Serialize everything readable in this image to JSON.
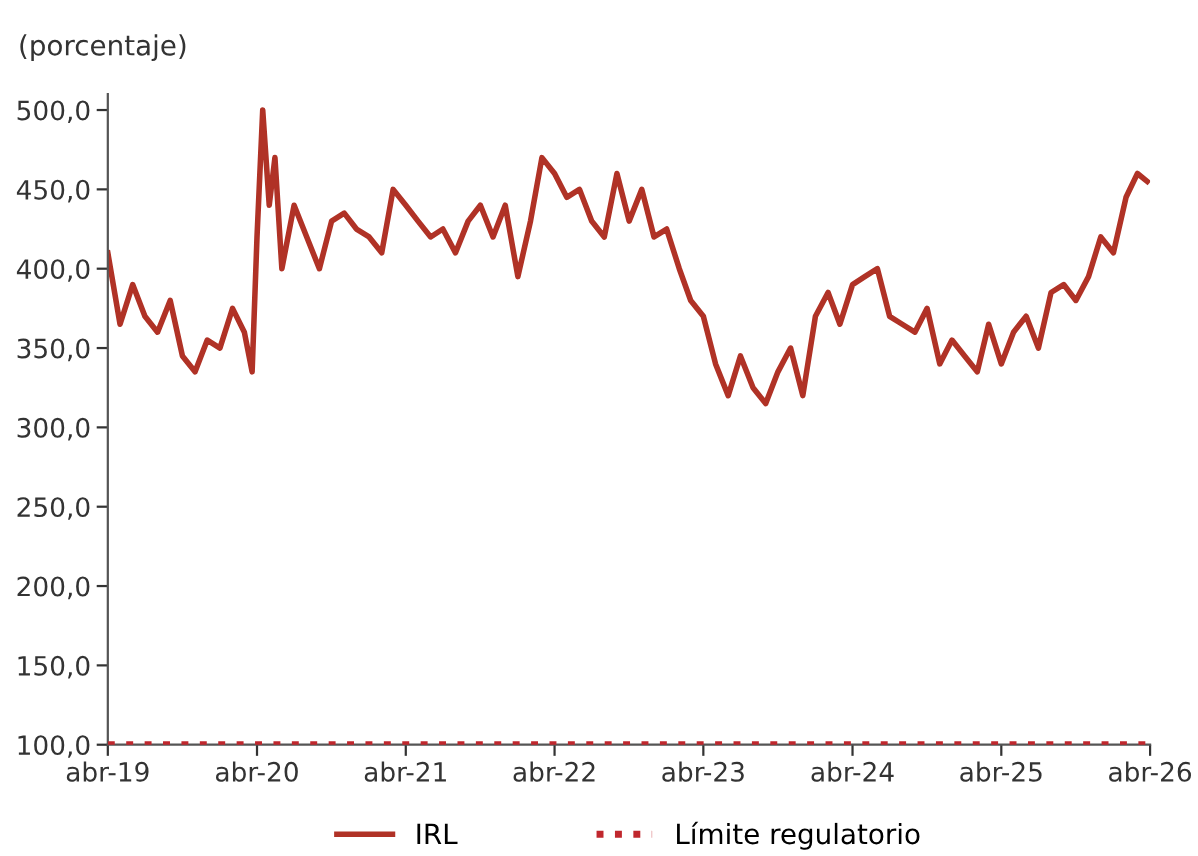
{
  "chart_data": {
    "type": "line",
    "ylabel": "(porcentaje)",
    "xlim": [
      "2019-04-01",
      "2026-04-01"
    ],
    "xticks": [
      {
        "value": "2019-04-01",
        "label": "abr-19"
      },
      {
        "value": "2020-04-01",
        "label": "abr-20"
      },
      {
        "value": "2021-04-01",
        "label": "abr-21"
      },
      {
        "value": "2022-04-01",
        "label": "abr-22"
      },
      {
        "value": "2023-04-01",
        "label": "abr-23"
      },
      {
        "value": "2024-04-01",
        "label": "abr-24"
      },
      {
        "value": "2025-04-01",
        "label": "abr-25"
      },
      {
        "value": "2026-04-01",
        "label": "abr-26"
      }
    ],
    "ylim": [
      100,
      510
    ],
    "yticks": [
      {
        "value": 100,
        "label": "100,0"
      },
      {
        "value": 150,
        "label": "150,0"
      },
      {
        "value": 200,
        "label": "200,0"
      },
      {
        "value": 250,
        "label": "250,0"
      },
      {
        "value": 300,
        "label": "300,0"
      },
      {
        "value": 350,
        "label": "350,0"
      },
      {
        "value": 400,
        "label": "400,0"
      },
      {
        "value": 450,
        "label": "450,0"
      },
      {
        "value": 500,
        "label": "500,0"
      }
    ],
    "grid": false,
    "legend": "bottom",
    "series": [
      {
        "name": "IRL",
        "color": "#b03226",
        "line_style": "solid",
        "x": [
          "2019-04-01",
          "2019-05-01",
          "2019-06-01",
          "2019-07-01",
          "2019-08-01",
          "2019-09-01",
          "2019-10-01",
          "2019-11-01",
          "2019-12-01",
          "2020-01-01",
          "2020-02-01",
          "2020-03-01",
          "2020-03-20",
          "2020-04-01",
          "2020-04-15",
          "2020-05-01",
          "2020-05-15",
          "2020-06-01",
          "2020-07-01",
          "2020-08-01",
          "2020-09-01",
          "2020-10-01",
          "2020-11-01",
          "2020-12-01",
          "2021-01-01",
          "2021-02-01",
          "2021-03-01",
          "2021-04-01",
          "2021-05-01",
          "2021-06-01",
          "2021-07-01",
          "2021-08-01",
          "2021-09-01",
          "2021-10-01",
          "2021-11-01",
          "2021-12-01",
          "2022-01-01",
          "2022-02-01",
          "2022-03-01",
          "2022-04-01",
          "2022-05-01",
          "2022-06-01",
          "2022-07-01",
          "2022-08-01",
          "2022-09-01",
          "2022-10-01",
          "2022-11-01",
          "2022-12-01",
          "2023-01-01",
          "2023-02-01",
          "2023-03-01",
          "2023-04-01",
          "2023-05-01",
          "2023-06-01",
          "2023-07-01",
          "2023-08-01",
          "2023-09-01",
          "2023-10-01",
          "2023-11-01",
          "2023-12-01",
          "2024-01-01",
          "2024-02-01",
          "2024-03-01",
          "2024-04-01",
          "2024-05-01",
          "2024-06-01",
          "2024-07-01",
          "2024-08-01",
          "2024-09-01",
          "2024-10-01",
          "2024-11-01",
          "2024-12-01",
          "2025-01-01",
          "2025-02-01",
          "2025-03-01",
          "2025-04-01",
          "2025-05-01",
          "2025-06-01",
          "2025-07-01",
          "2025-08-01",
          "2025-09-01",
          "2025-10-01",
          "2025-11-01",
          "2025-12-01",
          "2026-01-01",
          "2026-02-01",
          "2026-03-01",
          "2026-03-25"
        ],
        "values": [
          410,
          365,
          390,
          370,
          360,
          380,
          345,
          335,
          355,
          350,
          375,
          360,
          335,
          420,
          500,
          440,
          470,
          400,
          440,
          420,
          400,
          430,
          435,
          425,
          420,
          410,
          450,
          440,
          430,
          420,
          425,
          410,
          430,
          440,
          420,
          440,
          395,
          430,
          470,
          460,
          445,
          450,
          430,
          420,
          460,
          430,
          450,
          420,
          425,
          400,
          380,
          370,
          340,
          320,
          345,
          325,
          315,
          335,
          350,
          320,
          370,
          385,
          365,
          390,
          395,
          400,
          370,
          365,
          360,
          375,
          340,
          355,
          345,
          335,
          365,
          340,
          360,
          370,
          350,
          385,
          390,
          380,
          395,
          420,
          410,
          445,
          460,
          455
        ]
      },
      {
        "name": "Límite regulatorio",
        "color": "#c0272d",
        "line_style": "dotted",
        "x": [
          "2019-04-01",
          "2026-04-01"
        ],
        "values": [
          100,
          100
        ]
      }
    ]
  }
}
